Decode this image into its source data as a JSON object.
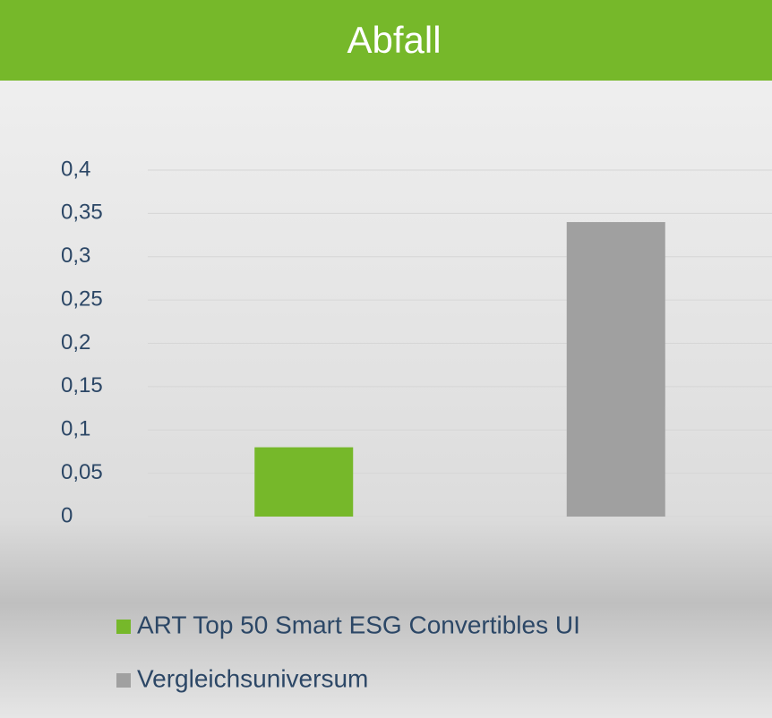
{
  "chart_data": {
    "type": "bar",
    "title": "Abfall",
    "categories": [
      null
    ],
    "series": [
      {
        "name": "ART Top 50 Smart ESG Convertibles UI",
        "color": "#76b82a",
        "values": [
          0.08
        ]
      },
      {
        "name": "Vergleichsuniversum",
        "color": "#a0a0a0",
        "values": [
          0.34
        ]
      }
    ],
    "ylim": [
      0,
      0.4
    ],
    "yticks": [
      0,
      {
        "value": 0.05,
        "label": "0,05"
      },
      {
        "value": 0.1,
        "label": "0,1"
      },
      {
        "value": 0.15,
        "label": "0,15"
      },
      {
        "value": 0.2,
        "label": "0,2"
      },
      {
        "value": 0.25,
        "label": "0,25"
      },
      {
        "value": 0.3,
        "label": "0,3"
      },
      {
        "value": 0.35,
        "label": "0,35"
      },
      {
        "value": 0.4,
        "label": "0,4"
      }
    ],
    "grid": true,
    "legend": "bottom"
  }
}
